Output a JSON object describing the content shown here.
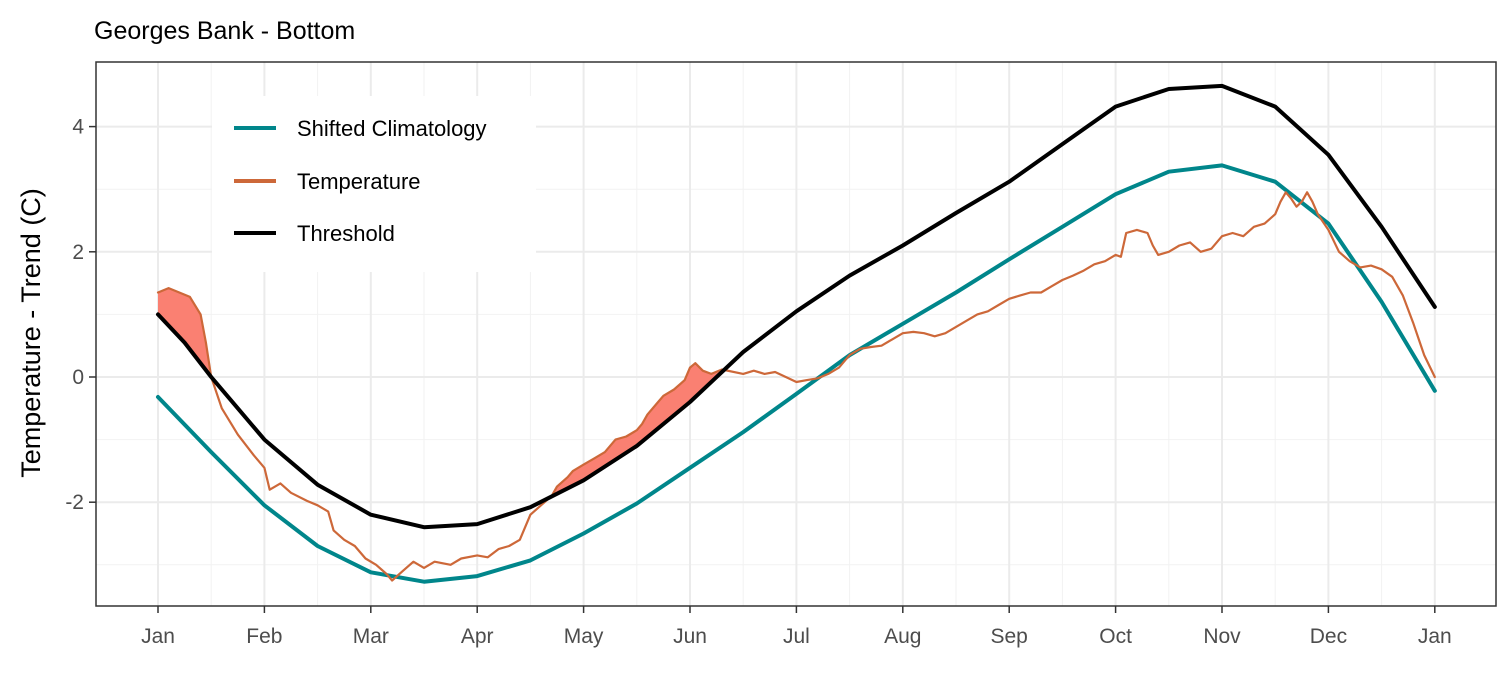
{
  "chart_data": {
    "type": "line",
    "title": "Georges Bank - Bottom",
    "ylabel": "Temperature - Trend (C)",
    "xlabel": "",
    "x_ticks": [
      "Jan",
      "Feb",
      "Mar",
      "Apr",
      "May",
      "Jun",
      "Jul",
      "Aug",
      "Sep",
      "Oct",
      "Nov",
      "Dec",
      "Jan"
    ],
    "y_ticks": [
      "-2",
      "0",
      "2",
      "4"
    ],
    "ylim": [
      -3.7,
      5.05
    ],
    "grid": true,
    "legend_position": "top-left",
    "x_unit": "month of year (0 = Jan 1, 12 = following Jan 1)",
    "series": [
      {
        "name": "Shifted Climatology",
        "color": "#00868B",
        "points": [
          [
            0,
            -0.32
          ],
          [
            0.5,
            -1.2
          ],
          [
            1,
            -2.05
          ],
          [
            1.5,
            -2.7
          ],
          [
            2,
            -3.12
          ],
          [
            2.5,
            -3.27
          ],
          [
            3,
            -3.18
          ],
          [
            3.5,
            -2.93
          ],
          [
            4,
            -2.5
          ],
          [
            4.5,
            -2.02
          ],
          [
            5,
            -1.45
          ],
          [
            5.5,
            -0.88
          ],
          [
            6,
            -0.27
          ],
          [
            6.5,
            0.35
          ],
          [
            7,
            0.85
          ],
          [
            7.5,
            1.35
          ],
          [
            8,
            1.88
          ],
          [
            8.5,
            2.4
          ],
          [
            9,
            2.92
          ],
          [
            9.5,
            3.28
          ],
          [
            10,
            3.38
          ],
          [
            10.5,
            3.12
          ],
          [
            11,
            2.45
          ],
          [
            11.5,
            1.2
          ],
          [
            12,
            -0.22
          ]
        ]
      },
      {
        "name": "Temperature",
        "color": "#CD6839",
        "points": [
          [
            0,
            1.35
          ],
          [
            0.1,
            1.42
          ],
          [
            0.2,
            1.35
          ],
          [
            0.3,
            1.28
          ],
          [
            0.4,
            1.0
          ],
          [
            0.45,
            0.55
          ],
          [
            0.5,
            0.0
          ],
          [
            0.6,
            -0.5
          ],
          [
            0.75,
            -0.92
          ],
          [
            0.9,
            -1.25
          ],
          [
            1,
            -1.45
          ],
          [
            1.05,
            -1.8
          ],
          [
            1.15,
            -1.7
          ],
          [
            1.25,
            -1.85
          ],
          [
            1.4,
            -1.98
          ],
          [
            1.5,
            -2.05
          ],
          [
            1.6,
            -2.15
          ],
          [
            1.65,
            -2.45
          ],
          [
            1.75,
            -2.6
          ],
          [
            1.85,
            -2.7
          ],
          [
            1.95,
            -2.9
          ],
          [
            2.05,
            -3.0
          ],
          [
            2.15,
            -3.15
          ],
          [
            2.2,
            -3.25
          ],
          [
            2.3,
            -3.1
          ],
          [
            2.4,
            -2.95
          ],
          [
            2.5,
            -3.05
          ],
          [
            2.6,
            -2.95
          ],
          [
            2.75,
            -3.0
          ],
          [
            2.85,
            -2.9
          ],
          [
            3.0,
            -2.85
          ],
          [
            3.1,
            -2.88
          ],
          [
            3.2,
            -2.75
          ],
          [
            3.3,
            -2.7
          ],
          [
            3.4,
            -2.6
          ],
          [
            3.5,
            -2.2
          ],
          [
            3.6,
            -2.05
          ],
          [
            3.7,
            -1.9
          ],
          [
            3.75,
            -1.75
          ],
          [
            3.85,
            -1.6
          ],
          [
            3.9,
            -1.5
          ],
          [
            4.0,
            -1.4
          ],
          [
            4.1,
            -1.3
          ],
          [
            4.2,
            -1.2
          ],
          [
            4.3,
            -1.0
          ],
          [
            4.4,
            -0.95
          ],
          [
            4.5,
            -0.85
          ],
          [
            4.55,
            -0.75
          ],
          [
            4.6,
            -0.6
          ],
          [
            4.7,
            -0.4
          ],
          [
            4.75,
            -0.3
          ],
          [
            4.85,
            -0.2
          ],
          [
            4.95,
            -0.05
          ],
          [
            5.0,
            0.15
          ],
          [
            5.05,
            0.22
          ],
          [
            5.12,
            0.1
          ],
          [
            5.2,
            0.05
          ],
          [
            5.3,
            0.12
          ],
          [
            5.5,
            0.05
          ],
          [
            5.6,
            0.1
          ],
          [
            5.7,
            0.05
          ],
          [
            5.8,
            0.08
          ],
          [
            5.9,
            0.0
          ],
          [
            6.0,
            -0.08
          ],
          [
            6.1,
            -0.05
          ],
          [
            6.2,
            -0.02
          ],
          [
            6.3,
            0.05
          ],
          [
            6.4,
            0.15
          ],
          [
            6.5,
            0.35
          ],
          [
            6.6,
            0.45
          ],
          [
            6.7,
            0.48
          ],
          [
            6.8,
            0.5
          ],
          [
            6.9,
            0.6
          ],
          [
            7.0,
            0.7
          ],
          [
            7.1,
            0.72
          ],
          [
            7.2,
            0.7
          ],
          [
            7.3,
            0.65
          ],
          [
            7.4,
            0.7
          ],
          [
            7.5,
            0.8
          ],
          [
            7.6,
            0.9
          ],
          [
            7.7,
            1.0
          ],
          [
            7.8,
            1.05
          ],
          [
            7.9,
            1.15
          ],
          [
            8.0,
            1.25
          ],
          [
            8.1,
            1.3
          ],
          [
            8.2,
            1.35
          ],
          [
            8.3,
            1.35
          ],
          [
            8.4,
            1.45
          ],
          [
            8.5,
            1.55
          ],
          [
            8.6,
            1.62
          ],
          [
            8.7,
            1.7
          ],
          [
            8.8,
            1.8
          ],
          [
            8.9,
            1.85
          ],
          [
            9.0,
            1.95
          ],
          [
            9.05,
            1.92
          ],
          [
            9.1,
            2.3
          ],
          [
            9.2,
            2.35
          ],
          [
            9.3,
            2.3
          ],
          [
            9.35,
            2.1
          ],
          [
            9.4,
            1.95
          ],
          [
            9.5,
            2.0
          ],
          [
            9.6,
            2.1
          ],
          [
            9.7,
            2.15
          ],
          [
            9.8,
            2.0
          ],
          [
            9.9,
            2.05
          ],
          [
            10.0,
            2.25
          ],
          [
            10.1,
            2.3
          ],
          [
            10.2,
            2.25
          ],
          [
            10.3,
            2.4
          ],
          [
            10.4,
            2.45
          ],
          [
            10.5,
            2.6
          ],
          [
            10.55,
            2.8
          ],
          [
            10.6,
            2.95
          ],
          [
            10.65,
            2.85
          ],
          [
            10.7,
            2.72
          ],
          [
            10.75,
            2.8
          ],
          [
            10.8,
            2.95
          ],
          [
            10.85,
            2.8
          ],
          [
            10.9,
            2.6
          ],
          [
            11.0,
            2.35
          ],
          [
            11.1,
            2.0
          ],
          [
            11.2,
            1.85
          ],
          [
            11.3,
            1.75
          ],
          [
            11.4,
            1.78
          ],
          [
            11.5,
            1.72
          ],
          [
            11.6,
            1.6
          ],
          [
            11.7,
            1.3
          ],
          [
            11.8,
            0.85
          ],
          [
            11.85,
            0.6
          ],
          [
            11.9,
            0.35
          ],
          [
            12.0,
            0.0
          ]
        ]
      },
      {
        "name": "Threshold",
        "color": "#000000",
        "points": [
          [
            0,
            1.0
          ],
          [
            0.25,
            0.55
          ],
          [
            0.5,
            0.0
          ],
          [
            0.75,
            -0.5
          ],
          [
            1,
            -1.0
          ],
          [
            1.5,
            -1.72
          ],
          [
            2,
            -2.2
          ],
          [
            2.5,
            -2.4
          ],
          [
            3,
            -2.35
          ],
          [
            3.5,
            -2.08
          ],
          [
            4,
            -1.65
          ],
          [
            4.5,
            -1.1
          ],
          [
            5,
            -0.4
          ],
          [
            5.5,
            0.4
          ],
          [
            6,
            1.05
          ],
          [
            6.5,
            1.62
          ],
          [
            7,
            2.1
          ],
          [
            7.5,
            2.62
          ],
          [
            8,
            3.12
          ],
          [
            8.5,
            3.72
          ],
          [
            9,
            4.32
          ],
          [
            9.5,
            4.6
          ],
          [
            10,
            4.65
          ],
          [
            10.5,
            4.32
          ],
          [
            11,
            3.55
          ],
          [
            11.5,
            2.4
          ],
          [
            12,
            1.12
          ]
        ]
      }
    ]
  }
}
